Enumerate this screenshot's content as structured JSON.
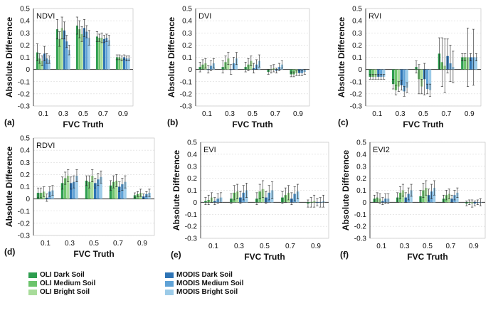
{
  "colors": {
    "oli_dark": "#2e9e4f",
    "oli_medium": "#6cc46c",
    "oli_bright": "#a8dc9a",
    "modis_dark": "#2e74b5",
    "modis_medium": "#5fa2d6",
    "modis_bright": "#9ccbe8"
  },
  "legend": [
    {
      "label": "OLI Dark Soil",
      "color_key": "oli_dark"
    },
    {
      "label": "OLI Medium Soil",
      "color_key": "oli_medium"
    },
    {
      "label": "OLI Bright Soil",
      "color_key": "oli_bright"
    },
    {
      "label": "MODIS Dark Soil",
      "color_key": "modis_dark"
    },
    {
      "label": "MODIS Medium Soil",
      "color_key": "modis_medium"
    },
    {
      "label": "MODIS Bright Soil",
      "color_key": "modis_bright"
    }
  ],
  "chart_data": [
    {
      "type": "bar",
      "title": "NDVI",
      "panel_label": "(a)",
      "xlabel": "FVC Truth",
      "ylabel": "Absolute Difference",
      "categories": [
        "0.1",
        "0.3",
        "0.5",
        "0.7",
        "0.9"
      ],
      "ylim": [
        -0.3,
        0.5
      ],
      "yticks": [
        "0.5",
        "0.4",
        "0.3",
        "0.2",
        "0.1",
        "0",
        "-0.1",
        "-0.2",
        "-0.3"
      ],
      "series": [
        {
          "name": "OLI Dark Soil",
          "values": [
            0.14,
            0.33,
            0.36,
            0.27,
            0.1
          ],
          "errors": [
            0.07,
            0.08,
            0.07,
            0.04,
            0.02
          ]
        },
        {
          "name": "OLI Medium Soil",
          "values": [
            0.09,
            0.25,
            0.33,
            0.26,
            0.1
          ],
          "errors": [
            0.04,
            0.06,
            0.07,
            0.03,
            0.02
          ]
        },
        {
          "name": "OLI Bright Soil",
          "values": [
            0.07,
            0.34,
            0.29,
            0.26,
            0.09
          ],
          "errors": [
            0.04,
            0.09,
            0.06,
            0.04,
            0.02
          ]
        },
        {
          "name": "MODIS Dark Soil",
          "values": [
            0.13,
            0.32,
            0.34,
            0.25,
            0.1
          ],
          "errors": [
            0.06,
            0.07,
            0.07,
            0.03,
            0.02
          ]
        },
        {
          "name": "MODIS Medium Soil",
          "values": [
            0.09,
            0.23,
            0.31,
            0.26,
            0.09
          ],
          "errors": [
            0.04,
            0.05,
            0.05,
            0.03,
            0.02
          ]
        },
        {
          "name": "MODIS Bright Soil",
          "values": [
            0.08,
            0.16,
            0.26,
            0.24,
            0.09
          ],
          "errors": [
            0.03,
            0.04,
            0.06,
            0.04,
            0.02
          ]
        }
      ]
    },
    {
      "type": "bar",
      "title": "DVI",
      "panel_label": "(b)",
      "xlabel": "FVC Truth",
      "ylabel": "Absolute Difference",
      "categories": [
        "0.1",
        "0.3",
        "0.5",
        "0.7",
        "0.9"
      ],
      "ylim": [
        -0.3,
        0.5
      ],
      "yticks": [
        "0.5",
        "0.4",
        "0.3",
        "0.2",
        "0.1",
        "0",
        "-0.1",
        "-0.2",
        "-0.3"
      ],
      "series": [
        {
          "name": "OLI Dark Soil",
          "values": [
            0.02,
            0.02,
            0.02,
            -0.02,
            -0.04
          ],
          "errors": [
            0.04,
            0.05,
            0.04,
            0.02,
            0.02
          ]
        },
        {
          "name": "OLI Medium Soil",
          "values": [
            0.04,
            0.06,
            0.04,
            0.0,
            -0.04
          ],
          "errors": [
            0.04,
            0.05,
            0.05,
            0.03,
            0.02
          ]
        },
        {
          "name": "OLI Bright Soil",
          "values": [
            0.05,
            0.09,
            0.07,
            0.01,
            -0.03
          ],
          "errors": [
            0.04,
            0.05,
            0.04,
            0.03,
            0.02
          ]
        },
        {
          "name": "MODIS Dark Soil",
          "values": [
            0.0,
            0.0,
            0.01,
            -0.01,
            -0.03
          ],
          "errors": [
            0.03,
            0.04,
            0.04,
            0.02,
            0.02
          ]
        },
        {
          "name": "MODIS Medium Soil",
          "values": [
            0.03,
            0.05,
            0.04,
            0.02,
            -0.03
          ],
          "errors": [
            0.04,
            0.05,
            0.04,
            0.03,
            0.02
          ]
        },
        {
          "name": "MODIS Bright Soil",
          "values": [
            0.05,
            0.09,
            0.07,
            0.04,
            -0.02
          ],
          "errors": [
            0.04,
            0.05,
            0.05,
            0.03,
            0.02
          ]
        }
      ]
    },
    {
      "type": "bar",
      "title": "RVI",
      "panel_label": "(c)",
      "xlabel": "FVC Truth",
      "ylabel": "Absolute Difference",
      "categories": [
        "0.1",
        "0.3",
        "0.5",
        "0.7",
        "0.9"
      ],
      "ylim": [
        -0.3,
        0.5
      ],
      "yticks": [
        "0.5",
        "0.4",
        "0.3",
        "0.2",
        "0.1",
        "0",
        "-0.1",
        "-0.2",
        "-0.3"
      ],
      "series": [
        {
          "name": "OLI Dark Soil",
          "values": [
            -0.06,
            -0.12,
            0.02,
            0.13,
            0.1
          ],
          "errors": [
            0.02,
            0.04,
            0.05,
            0.13,
            0.03
          ]
        },
        {
          "name": "OLI Medium Soil",
          "values": [
            -0.06,
            -0.17,
            -0.08,
            0.06,
            0.1
          ],
          "errors": [
            0.02,
            0.04,
            0.12,
            0.2,
            0.03
          ]
        },
        {
          "name": "OLI Bright Soil",
          "values": [
            -0.06,
            -0.14,
            -0.14,
            0.03,
            0.1
          ],
          "errors": [
            0.02,
            0.04,
            0.06,
            0.22,
            0.24
          ]
        },
        {
          "name": "MODIS Dark Soil",
          "values": [
            -0.06,
            -0.13,
            -0.08,
            0.11,
            0.1
          ],
          "errors": [
            0.02,
            0.04,
            0.13,
            0.14,
            0.03
          ]
        },
        {
          "name": "MODIS Medium Soil",
          "values": [
            -0.06,
            -0.18,
            -0.16,
            0.05,
            0.1
          ],
          "errors": [
            0.02,
            0.04,
            0.04,
            0.15,
            0.23
          ]
        },
        {
          "name": "MODIS Bright Soil",
          "values": [
            -0.06,
            -0.15,
            -0.17,
            0.02,
            0.1
          ],
          "errors": [
            0.02,
            0.04,
            0.05,
            0.13,
            0.03
          ]
        }
      ]
    },
    {
      "type": "bar",
      "title": "RDVI",
      "panel_label": "(d)",
      "xlabel": "FVC Truth",
      "ylabel": "Absolute Difference",
      "categories": [
        "0.1",
        "0.3",
        "0.5",
        "0.7",
        "0.9"
      ],
      "ylim": [
        -0.3,
        0.5
      ],
      "yticks": [
        "0.5",
        "0.4",
        "0.3",
        "0.2",
        "0.1",
        "0",
        "-0.1",
        "-0.2",
        "-0.3"
      ],
      "series": [
        {
          "name": "OLI Dark Soil",
          "values": [
            0.05,
            0.13,
            0.15,
            0.11,
            0.03
          ],
          "errors": [
            0.04,
            0.05,
            0.04,
            0.04,
            0.02
          ]
        },
        {
          "name": "OLI Medium Soil",
          "values": [
            0.05,
            0.17,
            0.14,
            0.14,
            0.04
          ],
          "errors": [
            0.04,
            0.05,
            0.05,
            0.05,
            0.02
          ]
        },
        {
          "name": "OLI Bright Soil",
          "values": [
            0.06,
            0.19,
            0.19,
            0.15,
            0.05
          ],
          "errors": [
            0.04,
            0.05,
            0.05,
            0.05,
            0.03
          ]
        },
        {
          "name": "MODIS Dark Soil",
          "values": [
            0.01,
            0.13,
            0.13,
            0.1,
            0.02
          ],
          "errors": [
            0.03,
            0.05,
            0.04,
            0.04,
            0.02
          ]
        },
        {
          "name": "MODIS Medium Soil",
          "values": [
            0.06,
            0.14,
            0.16,
            0.12,
            0.04
          ],
          "errors": [
            0.04,
            0.05,
            0.05,
            0.05,
            0.02
          ]
        },
        {
          "name": "MODIS Bright Soil",
          "values": [
            0.07,
            0.19,
            0.18,
            0.14,
            0.05
          ],
          "errors": [
            0.04,
            0.05,
            0.05,
            0.05,
            0.03
          ]
        }
      ]
    },
    {
      "type": "bar",
      "title": "EVI",
      "panel_label": "(e)",
      "xlabel": "FVC Truth",
      "ylabel": "Absolute Difference",
      "categories": [
        "0.1",
        "0.3",
        "0.5",
        "0.7",
        "0.9"
      ],
      "ylim": [
        -0.3,
        0.5
      ],
      "yticks": [
        "0.5",
        "0.4",
        "0.3",
        "0.2",
        "0.1",
        "0",
        "-0.1",
        "-0.2",
        "-0.3"
      ],
      "series": [
        {
          "name": "OLI Dark Soil",
          "values": [
            0.01,
            0.03,
            0.03,
            0.04,
            -0.01
          ],
          "errors": [
            0.03,
            0.04,
            0.05,
            0.05,
            0.03
          ]
        },
        {
          "name": "OLI Medium Soil",
          "values": [
            0.02,
            0.08,
            0.09,
            0.06,
            0.0
          ],
          "errors": [
            0.04,
            0.06,
            0.06,
            0.06,
            0.04
          ]
        },
        {
          "name": "OLI Bright Soil",
          "values": [
            0.04,
            0.09,
            0.11,
            0.08,
            0.01
          ],
          "errors": [
            0.04,
            0.06,
            0.07,
            0.06,
            0.05
          ]
        },
        {
          "name": "MODIS Dark Soil",
          "values": [
            0.01,
            0.04,
            0.04,
            0.03,
            0.0
          ],
          "errors": [
            0.03,
            0.05,
            0.05,
            0.05,
            0.03
          ]
        },
        {
          "name": "MODIS Medium Soil",
          "values": [
            0.03,
            0.08,
            0.08,
            0.07,
            0.0
          ],
          "errors": [
            0.04,
            0.06,
            0.06,
            0.06,
            0.04
          ]
        },
        {
          "name": "MODIS Bright Soil",
          "values": [
            0.04,
            0.1,
            0.1,
            0.09,
            0.01
          ],
          "errors": [
            0.04,
            0.06,
            0.07,
            0.06,
            0.05
          ]
        }
      ]
    },
    {
      "type": "bar",
      "title": "EVI2",
      "panel_label": "(f)",
      "xlabel": "FVC Truth",
      "ylabel": "Absolute Difference",
      "categories": [
        "0.1",
        "0.3",
        "0.5",
        "0.7",
        "0.9"
      ],
      "ylim": [
        -0.3,
        0.5
      ],
      "yticks": [
        "0.5",
        "0.4",
        "0.3",
        "0.2",
        "0.1",
        "0",
        "-0.1",
        "-0.2",
        "-0.3"
      ],
      "series": [
        {
          "name": "OLI Dark Soil",
          "values": [
            0.03,
            0.04,
            0.05,
            0.03,
            -0.01
          ],
          "errors": [
            0.03,
            0.04,
            0.05,
            0.03,
            0.02
          ]
        },
        {
          "name": "OLI Medium Soil",
          "values": [
            0.04,
            0.08,
            0.1,
            0.06,
            0.0
          ],
          "errors": [
            0.04,
            0.05,
            0.06,
            0.04,
            0.02
          ]
        },
        {
          "name": "OLI Bright Soil",
          "values": [
            0.03,
            0.1,
            0.12,
            0.07,
            -0.01
          ],
          "errors": [
            0.04,
            0.05,
            0.06,
            0.04,
            0.03
          ]
        },
        {
          "name": "MODIS Dark Soil",
          "values": [
            0.01,
            0.04,
            0.06,
            0.03,
            -0.01
          ],
          "errors": [
            0.03,
            0.04,
            0.05,
            0.03,
            0.02
          ]
        },
        {
          "name": "MODIS Medium Soil",
          "values": [
            0.03,
            0.07,
            0.09,
            0.06,
            0.0
          ],
          "errors": [
            0.04,
            0.05,
            0.06,
            0.04,
            0.02
          ]
        },
        {
          "name": "MODIS Bright Soil",
          "values": [
            0.03,
            0.1,
            0.12,
            0.08,
            0.0
          ],
          "errors": [
            0.04,
            0.05,
            0.06,
            0.04,
            0.03
          ]
        }
      ]
    }
  ]
}
